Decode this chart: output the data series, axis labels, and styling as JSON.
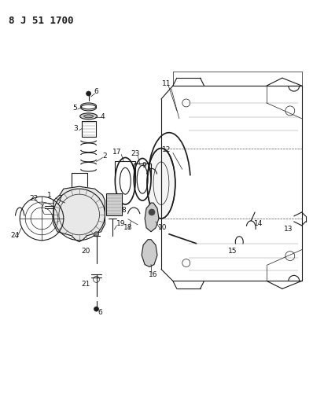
{
  "header_text": "8 J 51 1700",
  "background_color": "#ffffff",
  "line_color": "#1a1a1a",
  "header_fontsize": 9,
  "fig_width": 3.98,
  "fig_height": 5.33,
  "dpi": 100,
  "label_fontsize": 6.0,
  "label_color": "#111111"
}
